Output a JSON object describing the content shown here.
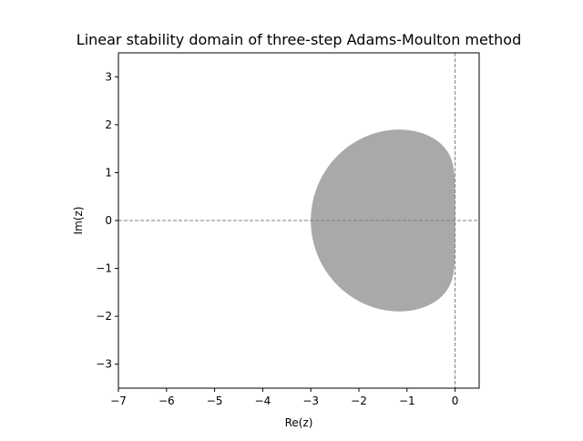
{
  "chart_data": {
    "type": "area",
    "title": "Linear stability domain of three-step Adams-Moulton method",
    "xlabel": "Re(z)",
    "ylabel": "Im(z)",
    "xlim": [
      -7,
      0.5
    ],
    "ylim": [
      -3.5,
      3.5
    ],
    "xticks": [
      -7,
      -6,
      -5,
      -4,
      -3,
      -2,
      -1,
      0
    ],
    "yticks": [
      -3,
      -2,
      -1,
      0,
      1,
      2,
      3
    ],
    "grid": false,
    "region_color": "#a9a9a9",
    "reference_lines": [
      {
        "axis": "y",
        "value": 0
      },
      {
        "axis": "x",
        "value": 0
      }
    ],
    "reference_line_color": "#808080",
    "leftmost_point": -3
  }
}
